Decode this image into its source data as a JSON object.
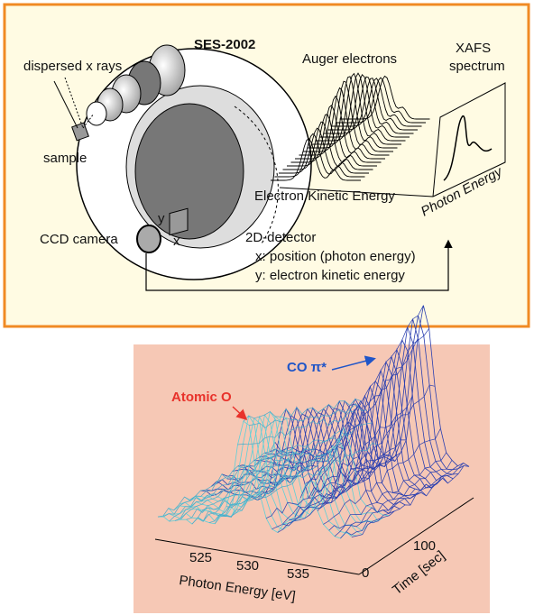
{
  "setup": {
    "title": "SES-2002",
    "source": "dispersed x rays",
    "sample": "sample",
    "auger": "Auger electrons",
    "xafs": [
      "XAFS",
      "spectrum"
    ],
    "photon_axis": "Photon Energy",
    "kinetic_axis": "Electron Kinetic Energy",
    "camera": "CCD camera",
    "detector": {
      "title": "2D-detector",
      "x_label": "x",
      "y_label": "y",
      "lines": [
        "x: position (photon energy)",
        "y: electron kinetic energy"
      ]
    }
  },
  "measurement": {
    "peak_labels": [
      "Atomic O",
      "CO π*"
    ],
    "energy_ticks": [
      525,
      530,
      535
    ],
    "energy_label": "Photon Energy [eV]",
    "time_ticks": [
      0,
      100
    ],
    "time_label": "Time [sec]"
  }
}
